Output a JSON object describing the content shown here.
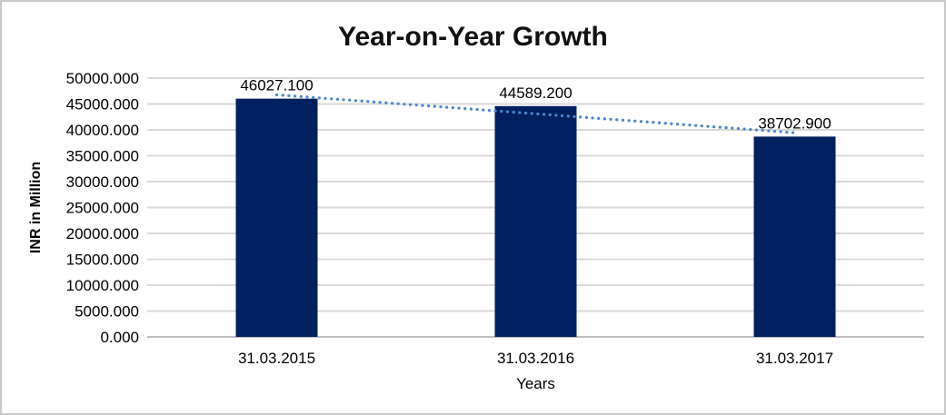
{
  "chart_data": {
    "type": "bar",
    "title": "Year-on-Year Growth",
    "xlabel": "Years",
    "ylabel": "INR in Million",
    "categories": [
      "31.03.2015",
      "31.03.2016",
      "31.03.2017"
    ],
    "values": [
      46027.1,
      44589.2,
      38702.9
    ],
    "data_labels": [
      "46027.100",
      "44589.200",
      "38702.900"
    ],
    "ylim": [
      0,
      50000
    ],
    "ytick_values": [
      0,
      5000,
      10000,
      15000,
      20000,
      25000,
      30000,
      35000,
      40000,
      45000,
      50000
    ],
    "ytick_labels": [
      "0.000",
      "5000.000",
      "10000.000",
      "15000.000",
      "20000.000",
      "25000.000",
      "30000.000",
      "35000.000",
      "40000.000",
      "45000.000",
      "50000.000"
    ],
    "grid": "horizontal",
    "legend": "none",
    "trendline": {
      "type": "linear",
      "style": "dotted"
    }
  },
  "colors": {
    "bar": "#002060",
    "trendline": "#4f87cd",
    "gridline": "#d9d9d9",
    "axis_line": "#bfbfbf",
    "label_text": "#000000",
    "title_text": "#111111",
    "frame_border": "#c9c9c9",
    "background": "#ffffff"
  }
}
